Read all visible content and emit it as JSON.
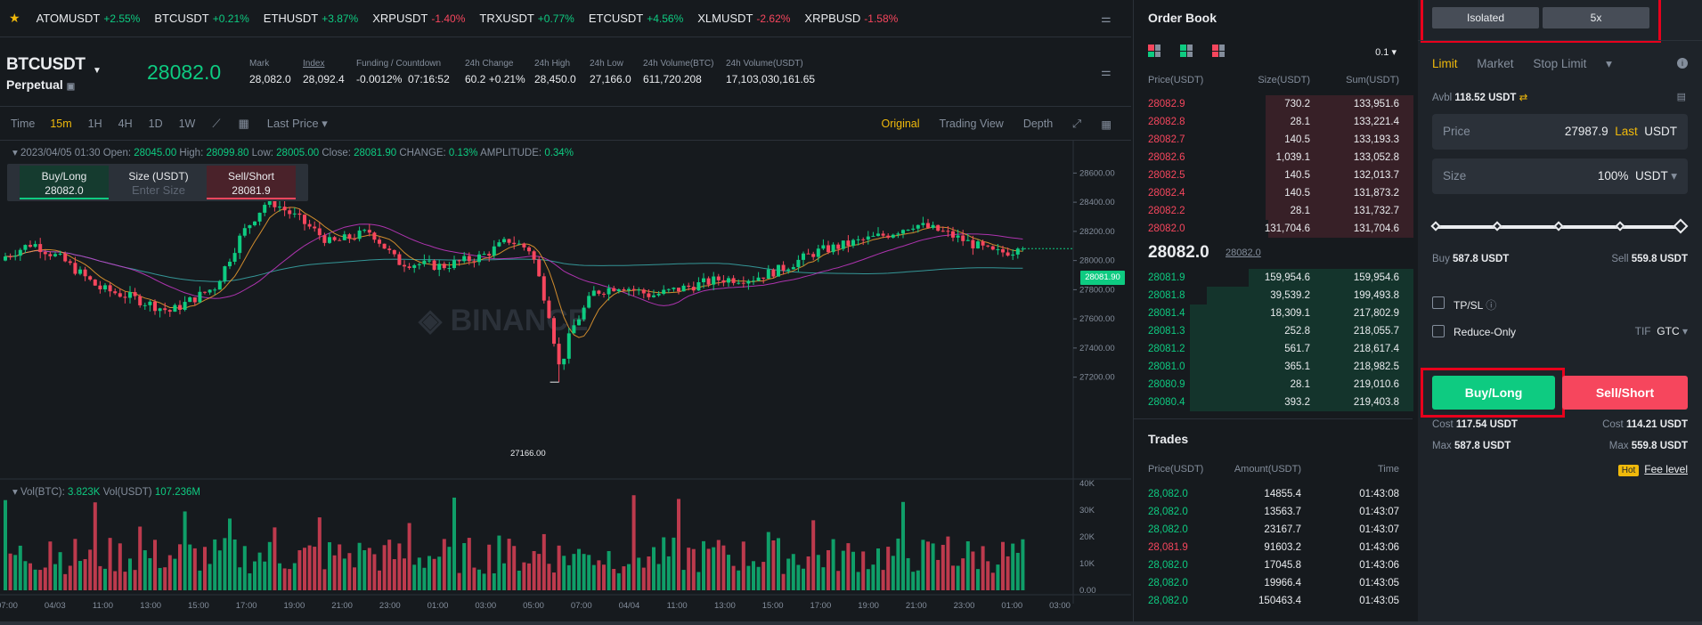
{
  "ticker": [
    {
      "symbol": "ATOMUSDT",
      "change": "+2.55%",
      "dir": "up"
    },
    {
      "symbol": "BTCUSDT",
      "change": "+0.21%",
      "dir": "up"
    },
    {
      "symbol": "ETHUSDT",
      "change": "+3.87%",
      "dir": "up"
    },
    {
      "symbol": "XRPUSDT",
      "change": "-1.40%",
      "dir": "down"
    },
    {
      "symbol": "TRXUSDT",
      "change": "+0.77%",
      "dir": "up"
    },
    {
      "symbol": "ETCUSDT",
      "change": "+4.56%",
      "dir": "up"
    },
    {
      "symbol": "XLMUSDT",
      "change": "-2.62%",
      "dir": "down"
    },
    {
      "symbol": "XRPBUSD",
      "change": "-1.58%",
      "dir": "down"
    }
  ],
  "header": {
    "symbol": "BTCUSDT",
    "contract": "Perpetual",
    "last_price": "28082.0",
    "stats": [
      {
        "label": "Mark",
        "value": "28,082.0",
        "color": "white"
      },
      {
        "label": "Index",
        "value": "28,092.4",
        "color": "white"
      },
      {
        "label": "Funding / Countdown",
        "value": "-0.0012%",
        "value2": "07:16:52",
        "color": "red"
      },
      {
        "label": "24h Change",
        "value": "60.2 +0.21%",
        "color": "green"
      },
      {
        "label": "24h High",
        "value": "28,450.0",
        "color": "white"
      },
      {
        "label": "24h Low",
        "value": "27,166.0",
        "color": "white"
      },
      {
        "label": "24h Volume(BTC)",
        "value": "611,720.208",
        "color": "white"
      },
      {
        "label": "24h Volume(USDT)",
        "value": "17,103,030,161.65",
        "color": "white"
      }
    ]
  },
  "chart_toolbar": {
    "time_label": "Time",
    "intervals": [
      "15m",
      "1H",
      "4H",
      "1D",
      "1W"
    ],
    "active_interval": "15m",
    "price_type": "Last Price",
    "views": [
      "Original",
      "Trading View",
      "Depth"
    ],
    "active_view": "Original"
  },
  "chart_info": {
    "datetime": "2023/04/05 01:30",
    "open_label": "Open:",
    "open": "28045.00",
    "high_label": "High:",
    "high": "28099.80",
    "low_label": "Low:",
    "low": "28005.00",
    "close_label": "Close:",
    "close": "28081.90",
    "change_label": "CHANGE:",
    "change": "0.13%",
    "amplitude_label": "AMPLITUDE:",
    "amplitude": "0.34%",
    "vol_btc_label": "Vol(BTC):",
    "vol_btc": "3.823K",
    "vol_usdt_label": "Vol(USDT)",
    "vol_usdt": "107.236M",
    "low_marker": "27166.00",
    "price_tag": "28081.90"
  },
  "quick_trade": {
    "buy_label": "Buy/Long",
    "buy_price": "28082.0",
    "size_label": "Size (USDT)",
    "size_placeholder": "Enter Size",
    "sell_label": "Sell/Short",
    "sell_price": "28081.9"
  },
  "chart_data": {
    "type": "candlestick",
    "x_tick_labels": [
      "07:00",
      "04/03",
      "11:00",
      "13:00",
      "15:00",
      "17:00",
      "19:00",
      "21:00",
      "23:00",
      "01:00",
      "03:00",
      "05:00",
      "07:00",
      "04/04",
      "11:00",
      "13:00",
      "15:00",
      "17:00",
      "19:00",
      "21:00",
      "23:00",
      "01:00",
      "03:00"
    ],
    "y_tick_labels": [
      "28600.00",
      "28400.00",
      "28200.00",
      "28000.00",
      "27800.00",
      "27600.00",
      "27400.00",
      "27200.00"
    ],
    "ylim": [
      27100,
      28700
    ],
    "volume_y_tick_labels": [
      "40K",
      "30K",
      "20K",
      "10K",
      "0.00"
    ],
    "volume_ylim": [
      0,
      40000
    ],
    "low_point": 27166.0,
    "last_close": 28081.9
  },
  "order_book": {
    "title": "Order Book",
    "precision": "0.1",
    "headers": [
      "Price(USDT)",
      "Size(USDT)",
      "Sum(USDT)"
    ],
    "asks": [
      {
        "price": "28082.9",
        "size": "730.2",
        "sum": "133,951.6",
        "depth": 0.53
      },
      {
        "price": "28082.8",
        "size": "28.1",
        "sum": "133,221.4",
        "depth": 0.53
      },
      {
        "price": "28082.7",
        "size": "140.5",
        "sum": "133,193.3",
        "depth": 0.53
      },
      {
        "price": "28082.6",
        "size": "1,039.1",
        "sum": "133,052.8",
        "depth": 0.53
      },
      {
        "price": "28082.5",
        "size": "140.5",
        "sum": "132,013.7",
        "depth": 0.53
      },
      {
        "price": "28082.4",
        "size": "140.5",
        "sum": "131,873.2",
        "depth": 0.53
      },
      {
        "price": "28082.2",
        "size": "28.1",
        "sum": "131,732.7",
        "depth": 0.53
      },
      {
        "price": "28082.0",
        "size": "131,704.6",
        "sum": "131,704.6",
        "depth": 0.52
      }
    ],
    "mid_price": "28082.0",
    "mark_price": "28082.0",
    "bids": [
      {
        "price": "28081.9",
        "size": "159,954.6",
        "sum": "159,954.6",
        "depth": 0.59
      },
      {
        "price": "28081.8",
        "size": "39,539.2",
        "sum": "199,493.8",
        "depth": 0.74
      },
      {
        "price": "28081.4",
        "size": "18,309.1",
        "sum": "217,802.9",
        "depth": 0.8
      },
      {
        "price": "28081.3",
        "size": "252.8",
        "sum": "218,055.7",
        "depth": 0.8
      },
      {
        "price": "28081.2",
        "size": "561.7",
        "sum": "218,617.4",
        "depth": 0.8
      },
      {
        "price": "28081.0",
        "size": "365.1",
        "sum": "218,982.5",
        "depth": 0.8
      },
      {
        "price": "28080.9",
        "size": "28.1",
        "sum": "219,010.6",
        "depth": 0.8
      },
      {
        "price": "28080.4",
        "size": "393.2",
        "sum": "219,403.8",
        "depth": 0.8
      }
    ]
  },
  "trades": {
    "title": "Trades",
    "headers": [
      "Price(USDT)",
      "Amount(USDT)",
      "Time"
    ],
    "rows": [
      {
        "price": "28,082.0",
        "amount": "14855.4",
        "time": "01:43:08",
        "dir": "up"
      },
      {
        "price": "28,082.0",
        "amount": "13563.7",
        "time": "01:43:07",
        "dir": "up"
      },
      {
        "price": "28,082.0",
        "amount": "23167.7",
        "time": "01:43:07",
        "dir": "up"
      },
      {
        "price": "28,081.9",
        "amount": "91603.2",
        "time": "01:43:06",
        "dir": "down"
      },
      {
        "price": "28,082.0",
        "amount": "17045.8",
        "time": "01:43:06",
        "dir": "up"
      },
      {
        "price": "28,082.0",
        "amount": "19966.4",
        "time": "01:43:05",
        "dir": "up"
      },
      {
        "price": "28,082.0",
        "amount": "150463.4",
        "time": "01:43:05",
        "dir": "up"
      }
    ]
  },
  "order_panel": {
    "margin_mode": "Isolated",
    "leverage": "5x",
    "order_types": [
      "Limit",
      "Market",
      "Stop Limit"
    ],
    "active_order_type": "Limit",
    "avbl_label": "Avbl",
    "avbl_value": "118.52 USDT",
    "price_label": "Price",
    "price_value": "27987.9",
    "price_last": "Last",
    "price_unit": "USDT",
    "size_label": "Size",
    "size_value": "100%",
    "size_unit": "USDT",
    "slider_level": 1.0,
    "buy_label": "Buy",
    "buy_value": "587.8 USDT",
    "sell_label": "Sell",
    "sell_value": "559.8 USDT",
    "tpsl_label": "TP/SL",
    "reduce_only_label": "Reduce-Only",
    "tif_label": "TIF",
    "tif_value": "GTC",
    "buy_button": "Buy/Long",
    "sell_button": "Sell/Short",
    "cost_label": "Cost",
    "buy_cost": "117.54 USDT",
    "sell_cost": "114.21 USDT",
    "max_label": "Max",
    "buy_max": "587.8 USDT",
    "sell_max": "559.8 USDT",
    "hot_label": "Hot",
    "fee_level_label": "Fee level"
  },
  "colors": {
    "up": "#0ecb81",
    "down": "#f6465d",
    "accent": "#f0b90b",
    "highlight": "#e8001c"
  }
}
